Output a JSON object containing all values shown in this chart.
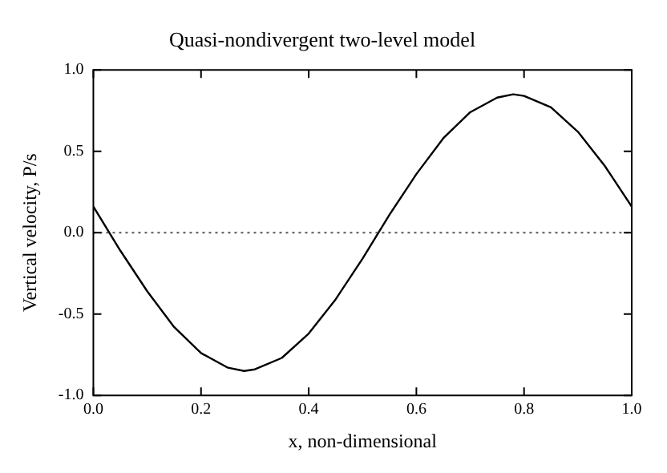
{
  "chart_data": {
    "type": "line",
    "title": "Quasi-nondivergent two-level model",
    "xlabel": "x, non-dimensional",
    "ylabel": "Vertical velocity, P/s",
    "x": [
      0,
      0.05,
      0.1,
      0.15,
      0.2,
      0.25,
      0.28,
      0.3,
      0.35,
      0.4,
      0.45,
      0.5,
      0.55,
      0.6,
      0.65,
      0.7,
      0.75,
      0.78,
      0.8,
      0.85,
      0.9,
      0.95,
      1.0
    ],
    "series": [
      {
        "color": "#000000",
        "values": [
          0.16,
          -0.11,
          -0.36,
          -0.58,
          -0.74,
          -0.83,
          -0.85,
          -0.84,
          -0.77,
          -0.62,
          -0.41,
          -0.16,
          0.11,
          0.36,
          0.58,
          0.74,
          0.83,
          0.85,
          0.84,
          0.77,
          0.62,
          0.41,
          0.16
        ]
      }
    ],
    "xlim": [
      0,
      1
    ],
    "ylim": [
      -1,
      1
    ],
    "xticks": [
      {
        "value": 0,
        "label": "0.0"
      },
      {
        "value": 0.2,
        "label": "0.2"
      },
      {
        "value": 0.4,
        "label": "0.4"
      },
      {
        "value": 0.6,
        "label": "0.6"
      },
      {
        "value": 0.8,
        "label": "0.8"
      },
      {
        "value": 1,
        "label": "1.0"
      }
    ],
    "yticks": [
      {
        "value": -1,
        "label": "-1.0"
      },
      {
        "value": -0.5,
        "label": "-0.5"
      },
      {
        "value": 0,
        "label": "0.0"
      },
      {
        "value": 0.5,
        "label": "0.5"
      },
      {
        "value": 1,
        "label": "1.0"
      }
    ],
    "ref_lines": [
      {
        "axis": "y",
        "value": 0,
        "color": "#555555",
        "line_style": "dotted"
      }
    ],
    "grid": false,
    "legend": false,
    "marker": "none",
    "line_style": "solid"
  }
}
